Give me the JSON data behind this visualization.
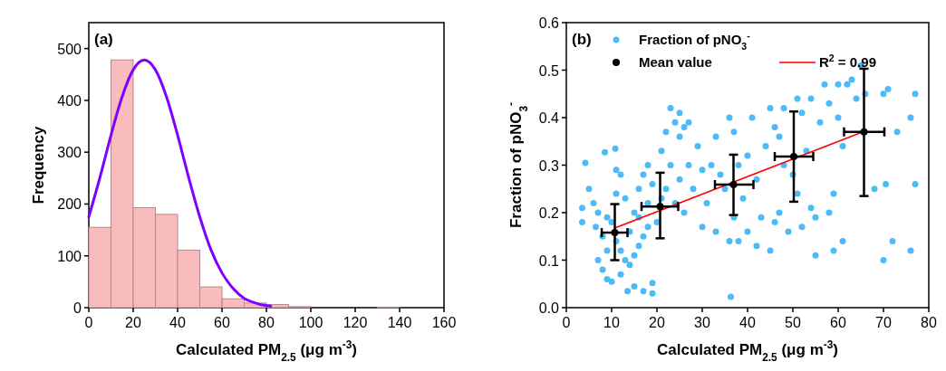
{
  "chart_data": [
    {
      "type": "histogram",
      "xlabel": "Calculated PM$_{2.5}$ (μg m$^{-3}$)",
      "ylabel": "Frequency",
      "annotations": [
        "(a)"
      ],
      "bins": [
        0,
        10,
        20,
        30,
        40,
        50,
        60,
        70,
        80,
        90,
        100,
        110,
        120,
        130,
        140,
        150,
        160
      ],
      "xlim": [
        0,
        160
      ],
      "xticks": [
        0,
        20,
        40,
        60,
        80,
        100,
        120,
        140,
        160
      ],
      "ylim": [
        0,
        550
      ],
      "yticks": [
        0,
        100,
        200,
        300,
        400,
        500
      ],
      "series": [
        {
          "color": "#f8bcbc",
          "values": [
            155,
            478,
            193,
            180,
            111,
            40,
            17,
            9,
            6,
            2,
            0,
            0,
            0,
            1,
            0,
            0
          ]
        },
        {
          "type": "line",
          "color": "#8000ff",
          "x": [
            0,
            5,
            10,
            15,
            20,
            25,
            30,
            35,
            40,
            45,
            50,
            55,
            60,
            65,
            70,
            75,
            80,
            82
          ],
          "values": [
            175,
            251,
            333,
            407,
            459,
            478,
            459,
            407,
            333,
            251,
            175,
            112,
            67,
            37,
            18,
            9,
            4,
            3
          ]
        }
      ]
    },
    {
      "type": "scatter",
      "xlabel": "Calculated  PM$_{2.5}$ (μg m$^{-3}$)",
      "ylabel": "Fraction of pNO$_{3}$$^{-}$",
      "annotations": [
        "(b)"
      ],
      "xlim": [
        0,
        80
      ],
      "xticks": [
        0,
        10,
        20,
        30,
        40,
        50,
        60,
        70,
        80
      ],
      "ylim": [
        0,
        0.6
      ],
      "yticks": [
        {
          "value": 0,
          "label": "0.0"
        },
        0.1,
        0.2,
        0.3,
        0.4,
        0.5,
        0.6
      ],
      "legend": "top left",
      "series": [
        {
          "name": "Fraction of pNO$_{3}$$^{-}$",
          "marker": "circle",
          "color": "#4dbbf5",
          "x": [
            4.2,
            3.5,
            3.5,
            5,
            6,
            7,
            8,
            9,
            10,
            12,
            13.5,
            15,
            17,
            19,
            19,
            36.3,
            8.5,
            10.8,
            11,
            12,
            9,
            8,
            7,
            6.5,
            11,
            12,
            13,
            14,
            15,
            16,
            17,
            18,
            14,
            15,
            16,
            17,
            18,
            19,
            20,
            21,
            22,
            23,
            24,
            25,
            26,
            27,
            22,
            23,
            24,
            25,
            26,
            27,
            28,
            29,
            30,
            30,
            31,
            32,
            33,
            33,
            34,
            35,
            36,
            36,
            37,
            37,
            38,
            38,
            39,
            40,
            40,
            41,
            42,
            42,
            43,
            44,
            45,
            45,
            46,
            46,
            47,
            47,
            48,
            48,
            49,
            50,
            51,
            51,
            52,
            52,
            53,
            54,
            54,
            55,
            55,
            56,
            57,
            58,
            58,
            59,
            59,
            60,
            60,
            61,
            61,
            62,
            63,
            64,
            65,
            66,
            68,
            70,
            70,
            70.5,
            71,
            72,
            73,
            76,
            76,
            77,
            77,
            25,
            18,
            21,
            13,
            10,
            11,
            9,
            16
          ],
          "values": [
            0.305,
            0.21,
            0.18,
            0.25,
            0.22,
            0.1,
            0.08,
            0.06,
            0.055,
            0.07,
            0.035,
            0.045,
            0.035,
            0.03,
            0.052,
            0.023,
            0.327,
            0.335,
            0.29,
            0.28,
            0.19,
            0.15,
            0.2,
            0.17,
            0.24,
            0.12,
            0.1,
            0.09,
            0.11,
            0.13,
            0.15,
            0.17,
            0.16,
            0.2,
            0.25,
            0.28,
            0.3,
            0.26,
            0.18,
            0.33,
            0.37,
            0.42,
            0.39,
            0.41,
            0.38,
            0.39,
            0.25,
            0.3,
            0.22,
            0.27,
            0.2,
            0.3,
            0.25,
            0.34,
            0.29,
            0.17,
            0.22,
            0.3,
            0.36,
            0.16,
            0.28,
            0.25,
            0.14,
            0.4,
            0.37,
            0.19,
            0.3,
            0.14,
            0.23,
            0.32,
            0.16,
            0.4,
            0.27,
            0.13,
            0.19,
            0.34,
            0.42,
            0.12,
            0.38,
            0.18,
            0.2,
            0.36,
            0.42,
            0.3,
            0.16,
            0.28,
            0.44,
            0.24,
            0.41,
            0.17,
            0.33,
            0.21,
            0.44,
            0.11,
            0.19,
            0.39,
            0.47,
            0.43,
            0.2,
            0.12,
            0.24,
            0.4,
            0.47,
            0.14,
            0.34,
            0.47,
            0.48,
            0.44,
            0.51,
            0.45,
            0.25,
            0.1,
            0.45,
            0.26,
            0.46,
            0.14,
            0.37,
            0.4,
            0.12,
            0.45,
            0.26,
            0.36,
            0.22,
            0.23,
            0.23,
            0.18,
            0.14,
            0.12,
            0.19
          ]
        },
        {
          "name": "Mean value",
          "marker": "circle",
          "color": "#000000",
          "x": [
            10.7,
            20.7,
            36.9,
            50.2,
            65.7
          ],
          "values": [
            0.158,
            0.213,
            0.259,
            0.318,
            0.37
          ],
          "errors": [
            [
              0.1,
              0.218
            ],
            [
              0.146,
              0.284
            ],
            [
              0.195,
              0.322
            ],
            [
              0.223,
              0.413
            ],
            [
              0.235,
              0.503
            ]
          ],
          "xerrors": [
            [
              7.8,
              13.5
            ],
            [
              16.6,
              24.7
            ],
            [
              32.8,
              41.3
            ],
            [
              46,
              54.5
            ],
            [
              61.3,
              70.2
            ]
          ]
        },
        {
          "type": "line",
          "name": "R$^{2}$ = 0.99",
          "color": "#ff0000",
          "x": [
            10.8,
            65.7
          ],
          "values": [
            0.168,
            0.371
          ]
        }
      ]
    }
  ]
}
